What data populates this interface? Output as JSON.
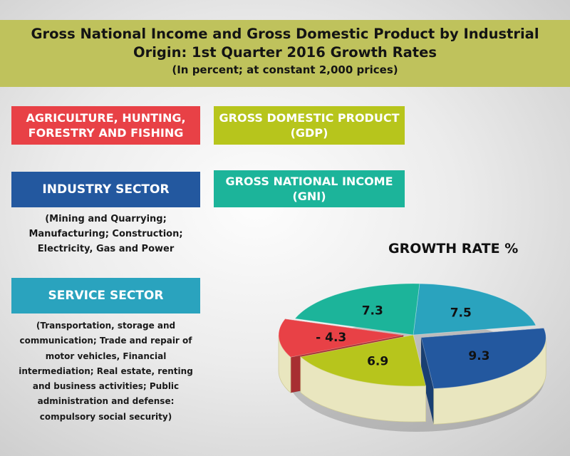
{
  "header": {
    "title_line1": "Gross National Income and Gross Domestic Product by Industrial",
    "title_line2": "Origin: 1st Quarter 2016 Growth Rates",
    "subtitle": "(In percent; at constant 2,000 prices)"
  },
  "legend": {
    "agriculture": [
      "AGRICULTURE, HUNTING,",
      "FORESTRY AND FISHING"
    ],
    "gdp": [
      "GROSS DOMESTIC PRODUCT",
      "(GDP)"
    ],
    "industry": "INDUSTRY SECTOR",
    "industry_desc": [
      "(Mining and Quarrying;",
      "Manufacturing; Construction;",
      "Electricity, Gas and Power"
    ],
    "gni": [
      "GROSS NATIONAL INCOME",
      "(GNI)"
    ],
    "service": "SERVICE SECTOR",
    "service_desc": [
      "(Transportation, storage and",
      "communication; Trade and repair of",
      "motor vehicles, Financial",
      "intermediation; Real estate, renting",
      "and business activities; Public",
      "administration and defense:",
      "compulsory social security)"
    ]
  },
  "chart_data": {
    "type": "pie",
    "title": "GROWTH RATE %",
    "slices": [
      {
        "label": "SERVICE SECTOR",
        "value": 7.5,
        "display": "7.5",
        "color": "#2aa3be"
      },
      {
        "label": "INDUSTRY SECTOR",
        "value": 9.3,
        "display": "9.3",
        "color": "#23589f"
      },
      {
        "label": "GROSS DOMESTIC PRODUCT (GDP)",
        "value": 6.9,
        "display": "6.9",
        "color": "#b7c51c"
      },
      {
        "label": "AGRICULTURE, HUNTING, FORESTRY AND FISHING",
        "value": -4.3,
        "display": "- 4.3",
        "color": "#e84146"
      },
      {
        "label": "GROSS NATIONAL INCOME (GNI)",
        "value": 7.3,
        "display": "7.3",
        "color": "#1cb49a"
      }
    ]
  }
}
